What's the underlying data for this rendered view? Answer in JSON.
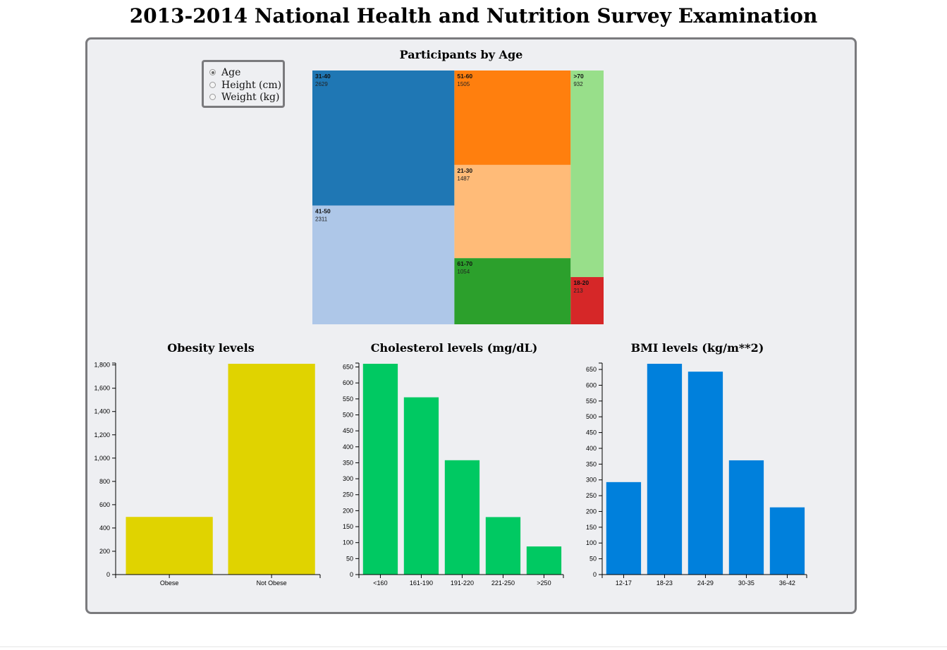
{
  "page": {
    "title": "2013-2014 National Health and Nutrition Survey Examination"
  },
  "selector": {
    "options": [
      {
        "label": "Age",
        "checked": true
      },
      {
        "label": "Height (cm)",
        "checked": false
      },
      {
        "label": "Weight (kg)",
        "checked": false
      }
    ]
  },
  "chart_data": [
    {
      "type": "treemap",
      "title": "Participants by Age",
      "cells": [
        {
          "label": "31-40",
          "value": 2629,
          "color": "#1f77b4"
        },
        {
          "label": "41-50",
          "value": 2311,
          "color": "#aec7e8"
        },
        {
          "label": "51-60",
          "value": 1505,
          "color": "#ff7f0e"
        },
        {
          "label": "21-30",
          "value": 1487,
          "color": "#ffbb78"
        },
        {
          "label": "61-70",
          "value": 1054,
          "color": "#2ca02c"
        },
        {
          "label": ">70",
          "value": 932,
          "color": "#98df8a"
        },
        {
          "label": "18-20",
          "value": 213,
          "color": "#d62728"
        }
      ]
    },
    {
      "type": "bar",
      "title": "Obesity levels",
      "categories": [
        "Obese",
        "Not Obese"
      ],
      "values": [
        495,
        1810
      ],
      "ylim": [
        0,
        1810
      ],
      "yticks": [
        0,
        200,
        400,
        600,
        800,
        1000,
        1200,
        1400,
        1600,
        1800
      ],
      "ytick_labels": [
        "0",
        "200",
        "400",
        "600",
        "800",
        "1,000",
        "1,200",
        "1,400",
        "1,600",
        "1,800"
      ],
      "color": "#e0d300"
    },
    {
      "type": "bar",
      "title": "Cholesterol levels (mg/dL)",
      "categories": [
        "<160",
        "161-190",
        "191-220",
        "221-250",
        ">250"
      ],
      "values": [
        660,
        555,
        358,
        180,
        88
      ],
      "ylim": [
        0,
        660
      ],
      "yticks": [
        0,
        50,
        100,
        150,
        200,
        250,
        300,
        350,
        400,
        450,
        500,
        550,
        600,
        650
      ],
      "ytick_labels": [
        "0",
        "50",
        "100",
        "150",
        "200",
        "250",
        "300",
        "350",
        "400",
        "450",
        "500",
        "550",
        "600",
        "650"
      ],
      "color": "#00c962"
    },
    {
      "type": "bar",
      "title": "BMI levels (kg/m**2)",
      "categories": [
        "12-17",
        "18-23",
        "24-29",
        "30-35",
        "36-42"
      ],
      "values": [
        293,
        668,
        643,
        362,
        213
      ],
      "ylim": [
        0,
        668
      ],
      "yticks": [
        0,
        50,
        100,
        150,
        200,
        250,
        300,
        350,
        400,
        450,
        500,
        550,
        600,
        650
      ],
      "ytick_labels": [
        "0",
        "50",
        "100",
        "150",
        "200",
        "250",
        "300",
        "350",
        "400",
        "450",
        "500",
        "550",
        "600",
        "650"
      ],
      "color": "#0080dc"
    }
  ]
}
